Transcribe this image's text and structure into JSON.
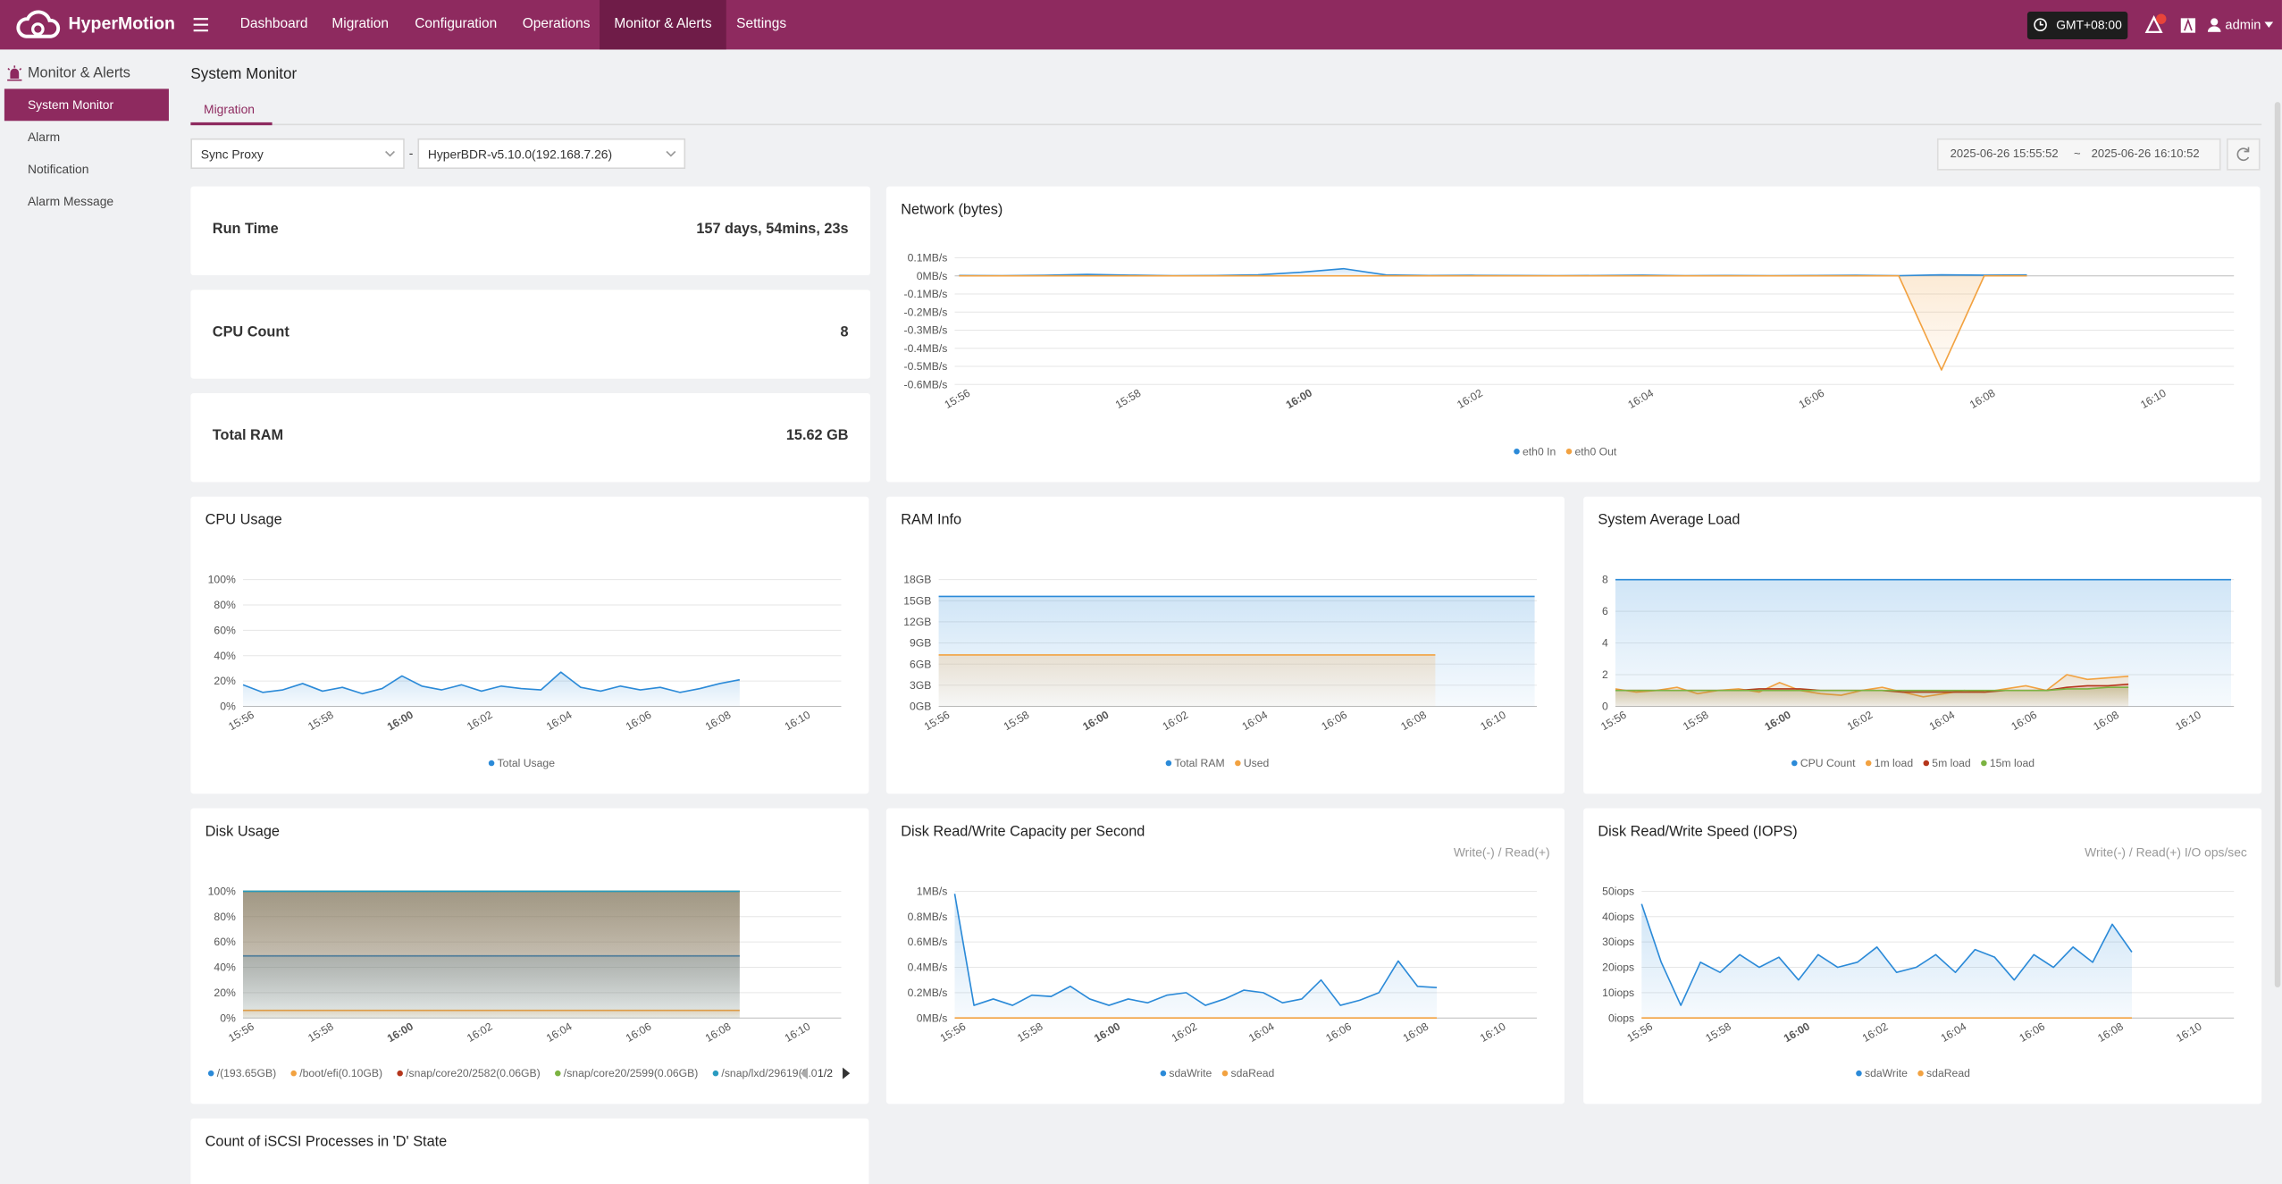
{
  "nav": {
    "brand": "HyperMotion",
    "items": [
      "Dashboard",
      "Migration",
      "Configuration",
      "Operations",
      "Monitor & Alerts",
      "Settings"
    ],
    "timezone": "GMT+08:00",
    "user": "admin"
  },
  "sidebar": {
    "title": "Monitor & Alerts",
    "items": [
      "System Monitor",
      "Alarm",
      "Notification",
      "Alarm Message"
    ]
  },
  "page": {
    "title": "System Monitor",
    "tab": "Migration",
    "select_type": "Sync Proxy",
    "separator": "-",
    "select_host": "HyperBDR-v5.10.0(192.168.7.26)",
    "time_start": "2025-06-26 15:55:52",
    "time_sep": "~",
    "time_end": "2025-06-26 16:10:52"
  },
  "stats": [
    {
      "label": "Run Time",
      "value": "157 days, 54mins, 23s"
    },
    {
      "label": "CPU Count",
      "value": 8
    },
    {
      "label": "Total RAM",
      "value": "15.62 GB"
    }
  ],
  "time_axis": [
    "15:56",
    "15:58",
    "16:00",
    "16:02",
    "16:04",
    "16:06",
    "16:08",
    "16:10"
  ],
  "charts": [
    {
      "type": "line",
      "title": "Network (bytes)",
      "area": true,
      "ylim": [
        -0.6,
        0.1
      ],
      "yticks": [
        {
          "value": 0.1,
          "label": "0.1MB/s"
        },
        {
          "value": 0,
          "label": "0MB/s"
        },
        {
          "value": -0.1,
          "label": "-0.1MB/s"
        },
        {
          "value": -0.2,
          "label": "-0.2MB/s"
        },
        {
          "value": -0.3,
          "label": "-0.3MB/s"
        },
        {
          "value": -0.4,
          "label": "-0.4MB/s"
        },
        {
          "value": -0.5,
          "label": "-0.5MB/s"
        },
        {
          "value": -0.6,
          "label": "-0.6MB/s"
        }
      ],
      "series": [
        {
          "name": "eth0 In",
          "color": "#2b8ad8",
          "values": [
            0.002,
            0.001,
            0.003,
            0.008,
            0.004,
            0.001,
            0.002,
            0.006,
            0.02,
            0.04,
            0.005,
            0.002,
            0.003,
            0.002,
            0.001,
            0.002,
            0.004,
            0.001,
            0.002,
            0.001,
            0.002,
            0.003,
            0.001,
            0.006,
            0.004,
            0.005
          ]
        },
        {
          "name": "eth0 Out",
          "color": "#f2a241",
          "values": [
            0,
            0,
            0,
            0,
            0,
            0,
            0,
            0,
            0,
            0,
            0,
            0,
            0,
            0,
            0,
            0,
            0,
            0,
            0,
            0,
            0,
            0,
            0,
            -0.52,
            0,
            0
          ]
        }
      ]
    },
    {
      "type": "line",
      "title": "CPU Usage",
      "area": true,
      "ylim": [
        0,
        100
      ],
      "yticks": [
        {
          "value": 0,
          "label": "0%"
        },
        {
          "value": 20,
          "label": "20%"
        },
        {
          "value": 40,
          "label": "40%"
        },
        {
          "value": 60,
          "label": "60%"
        },
        {
          "value": 80,
          "label": "80%"
        },
        {
          "value": 100,
          "label": "100%"
        }
      ],
      "series": [
        {
          "name": "Total Usage",
          "color": "#2b8ad8",
          "values": [
            17,
            11,
            13,
            18,
            12,
            15,
            10,
            14,
            24,
            16,
            13,
            17,
            12,
            16,
            14,
            13,
            27,
            15,
            12,
            16,
            13,
            15,
            11,
            14,
            18,
            21
          ]
        }
      ]
    },
    {
      "type": "line",
      "title": "RAM Info",
      "area": true,
      "ylim": [
        0,
        18
      ],
      "yticks": [
        {
          "value": 0,
          "label": "0GB"
        },
        {
          "value": 3,
          "label": "3GB"
        },
        {
          "value": 6,
          "label": "6GB"
        },
        {
          "value": 9,
          "label": "9GB"
        },
        {
          "value": 12,
          "label": "12GB"
        },
        {
          "value": 15,
          "label": "15GB"
        },
        {
          "value": 18,
          "label": "18GB"
        }
      ],
      "series": [
        {
          "name": "Total RAM",
          "color": "#2b8ad8",
          "values": [
            15.62,
            15.62,
            15.62,
            15.62,
            15.62,
            15.62,
            15.62,
            15.62,
            15.62,
            15.62,
            15.62,
            15.62,
            15.62,
            15.62,
            15.62,
            15.62,
            15.62,
            15.62,
            15.62,
            15.62,
            15.62,
            15.62,
            15.62,
            15.62,
            15.62,
            15.62,
            15.62,
            15.62,
            15.62,
            15.62,
            15.62
          ]
        },
        {
          "name": "Used",
          "color": "#f2a241",
          "values": [
            7.3,
            7.3,
            7.3,
            7.3,
            7.3,
            7.3,
            7.3,
            7.3,
            7.3,
            7.3,
            7.3,
            7.3,
            7.3,
            7.3,
            7.3,
            7.3,
            7.3,
            7.3,
            7.3,
            7.3,
            7.3,
            7.3,
            7.3,
            7.3,
            7.3,
            7.3
          ]
        }
      ]
    },
    {
      "type": "line",
      "title": "System Average Load",
      "area": true,
      "ylim": [
        0,
        8
      ],
      "yticks": [
        0,
        2,
        4,
        6,
        8
      ],
      "series": [
        {
          "name": "CPU Count",
          "color": "#2b8ad8",
          "values": [
            8,
            8,
            8,
            8,
            8,
            8,
            8,
            8,
            8,
            8,
            8,
            8,
            8,
            8,
            8,
            8,
            8,
            8,
            8,
            8,
            8,
            8,
            8,
            8,
            8,
            8,
            8,
            8,
            8,
            8,
            8
          ]
        },
        {
          "name": "1m load",
          "color": "#f2a241",
          "values": [
            1.1,
            0.9,
            1.0,
            1.2,
            0.8,
            1.0,
            1.1,
            0.9,
            1.5,
            1.0,
            0.8,
            0.7,
            1.0,
            1.2,
            0.9,
            0.6,
            0.8,
            1.0,
            0.9,
            1.1,
            1.3,
            1.0,
            2.0,
            1.7,
            1.8,
            1.9
          ]
        },
        {
          "name": "5m load",
          "color": "#b5361c",
          "values": [
            1.0,
            1.0,
            1.0,
            1.0,
            1.0,
            1.0,
            1.0,
            1.1,
            1.1,
            1.1,
            1.0,
            1.0,
            1.0,
            1.0,
            0.9,
            0.9,
            0.9,
            0.9,
            0.9,
            1.0,
            1.0,
            1.0,
            1.2,
            1.3,
            1.3,
            1.4
          ]
        },
        {
          "name": "15m load",
          "color": "#7cb342",
          "values": [
            1.0,
            1.0,
            1.0,
            1.0,
            1.0,
            1.0,
            1.0,
            1.0,
            1.0,
            1.0,
            1.0,
            1.0,
            1.0,
            1.0,
            1.0,
            1.0,
            1.0,
            1.0,
            1.0,
            1.0,
            1.0,
            1.0,
            1.1,
            1.1,
            1.2,
            1.2
          ]
        }
      ]
    },
    {
      "type": "line",
      "title": "Disk Usage",
      "area": true,
      "pager": "1/2",
      "ylim": [
        0,
        100
      ],
      "yticks": [
        {
          "value": 0,
          "label": "0%"
        },
        {
          "value": 20,
          "label": "20%"
        },
        {
          "value": 40,
          "label": "40%"
        },
        {
          "value": 60,
          "label": "60%"
        },
        {
          "value": 80,
          "label": "80%"
        },
        {
          "value": 100,
          "label": "100%"
        }
      ],
      "series": [
        {
          "name": "/(193.65GB)",
          "color": "#2b8ad8",
          "values": [
            49,
            49,
            49,
            49,
            49,
            49,
            49,
            49,
            49,
            49,
            49,
            49,
            49,
            49,
            49,
            49,
            49,
            49,
            49,
            49,
            49,
            49,
            49,
            49,
            49,
            49
          ]
        },
        {
          "name": "/boot/efi(0.10GB)",
          "color": "#f2a241",
          "values": [
            6,
            6,
            6,
            6,
            6,
            6,
            6,
            6,
            6,
            6,
            6,
            6,
            6,
            6,
            6,
            6,
            6,
            6,
            6,
            6,
            6,
            6,
            6,
            6,
            6,
            6
          ]
        },
        {
          "name": "/snap/core20/2582(0.06GB)",
          "color": "#b5361c",
          "values": [
            100,
            100,
            100,
            100,
            100,
            100,
            100,
            100,
            100,
            100,
            100,
            100,
            100,
            100,
            100,
            100,
            100,
            100,
            100,
            100,
            100,
            100,
            100,
            100,
            100,
            100
          ]
        },
        {
          "name": "/snap/core20/2599(0.06GB)",
          "color": "#7cb342",
          "values": [
            100,
            100,
            100,
            100,
            100,
            100,
            100,
            100,
            100,
            100,
            100,
            100,
            100,
            100,
            100,
            100,
            100,
            100,
            100,
            100,
            100,
            100,
            100,
            100,
            100,
            100
          ]
        },
        {
          "name": "/snap/lxd/29619(0.0",
          "color": "#2a9bc0",
          "values": [
            100,
            100,
            100,
            100,
            100,
            100,
            100,
            100,
            100,
            100,
            100,
            100,
            100,
            100,
            100,
            100,
            100,
            100,
            100,
            100,
            100,
            100,
            100,
            100,
            100,
            100
          ]
        }
      ]
    },
    {
      "type": "line",
      "title": "Disk Read/Write Capacity per Second",
      "annotation": "Write(-) / Read(+)",
      "area": true,
      "ylim": [
        0,
        1
      ],
      "yticks": [
        {
          "value": 0,
          "label": "0MB/s"
        },
        {
          "value": 0.2,
          "label": "0.2MB/s"
        },
        {
          "value": 0.4,
          "label": "0.4MB/s"
        },
        {
          "value": 0.6,
          "label": "0.6MB/s"
        },
        {
          "value": 0.8,
          "label": "0.8MB/s"
        },
        {
          "value": 1,
          "label": "1MB/s"
        }
      ],
      "series": [
        {
          "name": "sdaWrite",
          "color": "#2b8ad8",
          "values": [
            0.98,
            0.1,
            0.15,
            0.1,
            0.18,
            0.17,
            0.25,
            0.15,
            0.1,
            0.15,
            0.12,
            0.18,
            0.2,
            0.1,
            0.15,
            0.22,
            0.2,
            0.12,
            0.15,
            0.3,
            0.1,
            0.14,
            0.2,
            0.45,
            0.25,
            0.24
          ]
        },
        {
          "name": "sdaRead",
          "color": "#f2a241",
          "values": [
            0,
            0,
            0,
            0,
            0,
            0,
            0,
            0,
            0,
            0,
            0,
            0,
            0,
            0,
            0,
            0,
            0,
            0,
            0,
            0,
            0,
            0,
            0,
            0,
            0,
            0
          ]
        }
      ]
    },
    {
      "type": "line",
      "title": "Disk Read/Write Speed (IOPS)",
      "annotation": "Write(-) / Read(+) I/O ops/sec",
      "area": true,
      "ylim": [
        0,
        50
      ],
      "yticks": [
        {
          "value": 0,
          "label": "0iops"
        },
        {
          "value": 10,
          "label": "10iops"
        },
        {
          "value": 20,
          "label": "20iops"
        },
        {
          "value": 30,
          "label": "30iops"
        },
        {
          "value": 40,
          "label": "40iops"
        },
        {
          "value": 50,
          "label": "50iops"
        }
      ],
      "series": [
        {
          "name": "sdaWrite",
          "color": "#2b8ad8",
          "values": [
            45,
            22,
            5,
            22,
            18,
            25,
            20,
            24,
            15,
            25,
            20,
            22,
            28,
            18,
            20,
            25,
            18,
            27,
            24,
            15,
            25,
            20,
            28,
            22,
            37,
            26
          ]
        },
        {
          "name": "sdaRead",
          "color": "#f2a241",
          "values": [
            0,
            0,
            0,
            0,
            0,
            0,
            0,
            0,
            0,
            0,
            0,
            0,
            0,
            0,
            0,
            0,
            0,
            0,
            0,
            0,
            0,
            0,
            0,
            0,
            0,
            0
          ]
        }
      ]
    },
    {
      "type": "line",
      "title": "Count of iSCSI Processes in 'D' State"
    }
  ]
}
